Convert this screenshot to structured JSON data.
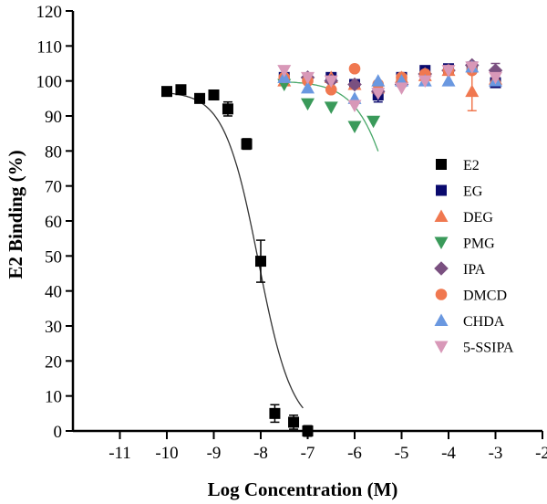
{
  "chart_data": {
    "type": "scatter",
    "title": "",
    "xlabel": "Log Concentration (M)",
    "ylabel": "E2 Binding (%)",
    "xlim": [
      -12,
      -2
    ],
    "ylim": [
      0,
      120
    ],
    "x_ticks": [
      -11,
      -10,
      -9,
      -8,
      -7,
      -6,
      -5,
      -4,
      -3,
      -2
    ],
    "y_ticks": [
      0,
      10,
      20,
      30,
      40,
      50,
      60,
      70,
      80,
      90,
      100,
      110,
      120
    ],
    "legend_position": "right",
    "series": [
      {
        "name": "E2",
        "marker": "square",
        "color": "#000000",
        "points": [
          {
            "x": -10.0,
            "y": 97,
            "err": 1
          },
          {
            "x": -9.7,
            "y": 97.5,
            "err": 1
          },
          {
            "x": -9.3,
            "y": 95,
            "err": 1
          },
          {
            "x": -9.0,
            "y": 96,
            "err": 1
          },
          {
            "x": -8.7,
            "y": 92,
            "err": 2
          },
          {
            "x": -8.3,
            "y": 82,
            "err": 1.5
          },
          {
            "x": -8.0,
            "y": 48.5,
            "err": 6
          },
          {
            "x": -7.7,
            "y": 5,
            "err": 2.5
          },
          {
            "x": -7.3,
            "y": 2.5,
            "err": 2
          },
          {
            "x": -7.0,
            "y": 0,
            "err": 1.5
          }
        ],
        "fit": {
          "top": 97,
          "bottom": 0,
          "log_ic50": -8.05,
          "hill": -1.2,
          "x_range": [
            -9.9,
            -7.1
          ],
          "color": "#333333"
        }
      },
      {
        "name": "EG",
        "marker": "square",
        "color": "#0a0a6e",
        "points": [
          {
            "x": -7.5,
            "y": 101,
            "err": 1
          },
          {
            "x": -6.5,
            "y": 101,
            "err": 1
          },
          {
            "x": -6.0,
            "y": 99,
            "err": 1
          },
          {
            "x": -5.5,
            "y": 96,
            "err": 2
          },
          {
            "x": -5.0,
            "y": 101,
            "err": 1
          },
          {
            "x": -4.5,
            "y": 103,
            "err": 1
          },
          {
            "x": -4.0,
            "y": 103.5,
            "err": 1
          },
          {
            "x": -3.5,
            "y": 104,
            "err": 1
          },
          {
            "x": -3.0,
            "y": 99.5,
            "err": 1
          }
        ]
      },
      {
        "name": "DEG",
        "marker": "triangle-up",
        "color": "#f07850",
        "points": [
          {
            "x": -7.5,
            "y": 100,
            "err": 1
          },
          {
            "x": -6.5,
            "y": 101,
            "err": 1
          },
          {
            "x": -6.0,
            "y": 99,
            "err": 1
          },
          {
            "x": -5.5,
            "y": 98,
            "err": 1
          },
          {
            "x": -5.0,
            "y": 101,
            "err": 1
          },
          {
            "x": -4.5,
            "y": 101.5,
            "err": 1
          },
          {
            "x": -4.0,
            "y": 103,
            "err": 1
          },
          {
            "x": -3.5,
            "y": 97,
            "err": 5.5
          },
          {
            "x": -3.0,
            "y": 100.5,
            "err": 1
          }
        ]
      },
      {
        "name": "PMG",
        "marker": "triangle-down",
        "color": "#3a9a5a",
        "points": [
          {
            "x": -7.5,
            "y": 99,
            "err": 1
          },
          {
            "x": -7.0,
            "y": 93.5,
            "err": 1
          },
          {
            "x": -6.5,
            "y": 92.5,
            "err": 1
          },
          {
            "x": -6.0,
            "y": 87,
            "err": 1
          },
          {
            "x": -5.6,
            "y": 88.5,
            "err": 1
          }
        ],
        "fit": {
          "top": 100,
          "bottom": 0,
          "log_ic50": -4.9,
          "hill": -1.0,
          "x_range": [
            -7.6,
            -5.5
          ],
          "color": "#4aa86a"
        }
      },
      {
        "name": "IPA",
        "marker": "diamond",
        "color": "#7a5080",
        "points": [
          {
            "x": -7.0,
            "y": 101,
            "err": 1
          },
          {
            "x": -6.5,
            "y": 100,
            "err": 1
          },
          {
            "x": -6.0,
            "y": 99,
            "err": 1
          },
          {
            "x": -5.5,
            "y": 97,
            "err": 1
          },
          {
            "x": -5.0,
            "y": 99,
            "err": 1
          },
          {
            "x": -4.5,
            "y": 102,
            "err": 1
          },
          {
            "x": -4.0,
            "y": 103,
            "err": 1
          },
          {
            "x": -3.5,
            "y": 104.5,
            "err": 1
          },
          {
            "x": -3.0,
            "y": 103,
            "err": 2
          }
        ]
      },
      {
        "name": "DMCD",
        "marker": "circle",
        "color": "#f07850",
        "points": [
          {
            "x": -7.5,
            "y": 101,
            "err": 1
          },
          {
            "x": -7.0,
            "y": 100,
            "err": 1
          },
          {
            "x": -6.5,
            "y": 97.5,
            "err": 1
          },
          {
            "x": -6.0,
            "y": 103.5,
            "err": 1
          },
          {
            "x": -5.5,
            "y": 99,
            "err": 1
          },
          {
            "x": -5.0,
            "y": 101,
            "err": 1
          },
          {
            "x": -4.5,
            "y": 102,
            "err": 1
          },
          {
            "x": -4.0,
            "y": 103,
            "err": 1
          },
          {
            "x": -3.5,
            "y": 103,
            "err": 1
          }
        ]
      },
      {
        "name": "CHDA",
        "marker": "triangle-up",
        "color": "#6a98e0",
        "points": [
          {
            "x": -7.5,
            "y": 101,
            "err": 1
          },
          {
            "x": -7.0,
            "y": 98,
            "err": 1
          },
          {
            "x": -6.0,
            "y": 95,
            "err": 1
          },
          {
            "x": -5.5,
            "y": 100,
            "err": 1
          },
          {
            "x": -5.0,
            "y": 100,
            "err": 1
          },
          {
            "x": -4.5,
            "y": 100,
            "err": 1
          },
          {
            "x": -4.0,
            "y": 100,
            "err": 1
          },
          {
            "x": -3.5,
            "y": 104,
            "err": 1
          },
          {
            "x": -3.0,
            "y": 100,
            "err": 1
          }
        ]
      },
      {
        "name": "5-SSIPA",
        "marker": "triangle-down",
        "color": "#d898b8",
        "points": [
          {
            "x": -7.5,
            "y": 103,
            "err": 1
          },
          {
            "x": -7.0,
            "y": 101,
            "err": 1
          },
          {
            "x": -6.5,
            "y": 100,
            "err": 1
          },
          {
            "x": -6.0,
            "y": 93,
            "err": 1
          },
          {
            "x": -5.5,
            "y": 96.5,
            "err": 1
          },
          {
            "x": -5.0,
            "y": 98,
            "err": 1
          },
          {
            "x": -4.5,
            "y": 100,
            "err": 1
          },
          {
            "x": -4.0,
            "y": 103,
            "err": 1
          },
          {
            "x": -3.5,
            "y": 104,
            "err": 1
          },
          {
            "x": -3.0,
            "y": 101,
            "err": 1
          }
        ]
      }
    ]
  }
}
